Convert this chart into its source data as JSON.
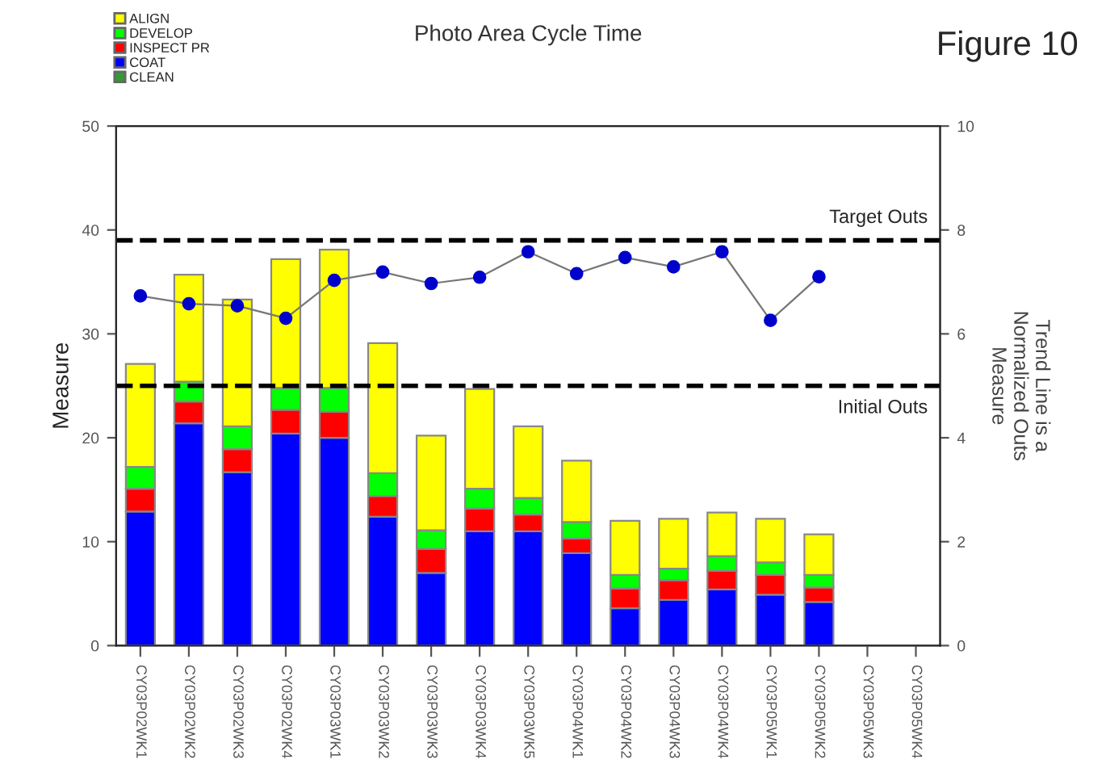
{
  "chart_data": {
    "type": "bar",
    "stacked": true,
    "title": "Photo Area Cycle Time",
    "ylabel": "Measure",
    "y2label": "Trend Line is a\nNormalized Outs\nMeasure",
    "annotations": [
      "Figure 10"
    ],
    "categories": [
      "CY03P02WK1",
      "CY03P02WK2",
      "CY03P02WK3",
      "CY03P02WK4",
      "CY03P03WK1",
      "CY03P03WK2",
      "CY03P03WK3",
      "CY03P03WK4",
      "CY03P03WK5",
      "CY03P04WK1",
      "CY03P04WK2",
      "CY03P04WK3",
      "CY03P04WK4",
      "CY03P05WK1",
      "CY03P05WK2",
      "CY03P05WK3",
      "CY03P05WK4"
    ],
    "series": [
      {
        "name": "CLEAN",
        "color": "#339933",
        "values": [
          null,
          null,
          null,
          null,
          null,
          null,
          null,
          null,
          null,
          null,
          null,
          null,
          null,
          null,
          null,
          null,
          null
        ]
      },
      {
        "name": "COAT",
        "color": "#0000ff",
        "values": [
          12.9,
          21.4,
          16.7,
          20.4,
          20.0,
          12.4,
          7.0,
          11.0,
          11.0,
          8.9,
          3.6,
          4.4,
          5.4,
          4.9,
          4.2,
          null,
          null
        ]
      },
      {
        "name": "INSPECT PR",
        "color": "#ff0000",
        "values": [
          2.2,
          2.1,
          2.2,
          2.3,
          2.5,
          2.0,
          2.3,
          2.2,
          1.6,
          1.4,
          1.9,
          1.9,
          1.8,
          1.9,
          1.4,
          null,
          null
        ]
      },
      {
        "name": "DEVELOP",
        "color": "#00ff00",
        "values": [
          2.1,
          1.9,
          2.2,
          2.1,
          2.3,
          2.2,
          1.8,
          1.9,
          1.6,
          1.6,
          1.3,
          1.1,
          1.4,
          1.2,
          1.2,
          null,
          null
        ]
      },
      {
        "name": "ALIGN",
        "color": "#ffff00",
        "values": [
          9.9,
          10.3,
          12.2,
          12.4,
          13.3,
          12.5,
          9.1,
          9.6,
          6.9,
          5.9,
          5.2,
          4.8,
          4.2,
          4.2,
          3.9,
          null,
          null
        ]
      },
      {
        "type": "line",
        "axis": "y2",
        "color": "#0000cc",
        "marker": "circle",
        "values": [
          6.73,
          6.58,
          6.54,
          6.3,
          7.03,
          7.19,
          6.97,
          7.09,
          7.58,
          7.16,
          7.47,
          7.29,
          7.58,
          6.26,
          7.1,
          null,
          null
        ]
      }
    ],
    "ylim": [
      0,
      50
    ],
    "yticks": [
      0,
      10,
      20,
      30,
      40,
      50
    ],
    "y2lim": [
      0,
      10
    ],
    "y2ticks": [
      0,
      2,
      4,
      6,
      8,
      10
    ],
    "ref_lines": [
      {
        "axis": "y",
        "value": 39,
        "label": "Target Outs",
        "color": "#000000",
        "line_style": "dashed"
      },
      {
        "axis": "y",
        "value": 25,
        "label": "Initial Outs",
        "color": "#000000",
        "line_style": "dashed"
      }
    ],
    "legend": "top left",
    "grid": false
  }
}
